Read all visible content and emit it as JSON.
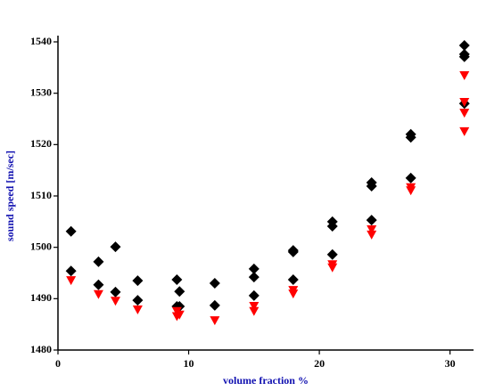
{
  "chart_data": {
    "type": "scatter",
    "x_label": "volume fraction %",
    "y_label": "sound speed [m/sec]",
    "xlim": [
      0,
      31.8
    ],
    "xticks": [
      0,
      10,
      20,
      30
    ],
    "ylim": [
      1480,
      1540
    ],
    "yticks": [
      1480,
      1490,
      1500,
      1510,
      1520,
      1530,
      1540
    ],
    "series": [
      {
        "color": "#000000",
        "marker": "diamond",
        "x": [
          1.0,
          1.0,
          3.1,
          3.1,
          4.4,
          4.4,
          6.1,
          6.1,
          9.1,
          9.3,
          9.1,
          9.3,
          12.0,
          12.0,
          15.0,
          15.0,
          15.0,
          18.0,
          18.0,
          18.0,
          21.0,
          21.0,
          21.0,
          24.0,
          24.0,
          24.0,
          27.0,
          27.0,
          27.0,
          31.1,
          31.1,
          31.1,
          31.1
        ],
        "values": [
          1503.1,
          1495.4,
          1497.2,
          1492.7,
          1500.1,
          1491.3,
          1493.5,
          1489.7,
          1493.7,
          1491.4,
          1488.5,
          1488.5,
          1493.0,
          1488.7,
          1495.8,
          1494.2,
          1490.6,
          1499.4,
          1499.1,
          1493.7,
          1505.0,
          1504.1,
          1498.6,
          1512.6,
          1511.9,
          1505.3,
          1522.0,
          1521.4,
          1513.5,
          1539.3,
          1537.6,
          1537.1,
          1528.0
        ]
      },
      {
        "color": "#ff0000",
        "marker": "triangle-down",
        "x": [
          1.0,
          3.1,
          4.4,
          6.1,
          9.1,
          9.3,
          9.1,
          12.0,
          15.0,
          15.0,
          18.0,
          18.0,
          21.0,
          21.0,
          24.0,
          24.0,
          27.0,
          27.0,
          31.1,
          31.1,
          31.1,
          31.1
        ],
        "values": [
          1493.5,
          1490.8,
          1489.5,
          1487.8,
          1487.5,
          1486.8,
          1486.5,
          1485.7,
          1488.5,
          1487.5,
          1491.6,
          1490.9,
          1496.6,
          1496.0,
          1503.4,
          1502.4,
          1511.6,
          1511.0,
          1533.4,
          1528.2,
          1526.1,
          1522.5
        ]
      }
    ]
  }
}
